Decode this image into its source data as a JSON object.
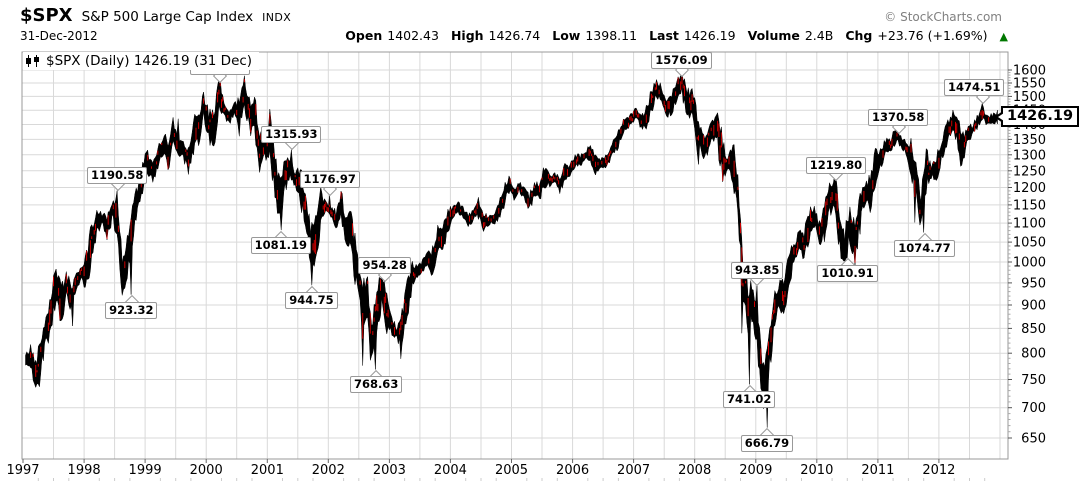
{
  "header": {
    "symbol": "$SPX",
    "name": "S&P 500 Large Cap Index",
    "exchange": "INDX",
    "credit": "© StockCharts.com",
    "date": "31-Dec-2012",
    "quote": {
      "open_label": "Open",
      "open_value": "1402.43",
      "high_label": "High",
      "high_value": "1426.74",
      "low_label": "Low",
      "low_value": "1398.11",
      "last_label": "Last",
      "last_value": "1426.19",
      "volume_label": "Volume",
      "volume_value": "2.4B",
      "chg_label": "Chg",
      "chg_value": "+23.76 (+1.69%)",
      "chg_direction": "up"
    }
  },
  "legend_text": "$SPX (Daily) 1426.19 (31 Dec)",
  "price_box_value": "1426.19",
  "colors": {
    "candle": "#000000",
    "candle_down": "#cc0000",
    "grid": "#d9d9d9",
    "plot_border": "#999999",
    "up_arrow_green": "#007700",
    "credit_gray": "#808080"
  },
  "chart_data": {
    "type": "candlestick",
    "title": "$SPX (Daily) 1426.19 (31 Dec)",
    "x_range": [
      1997,
      2013
    ],
    "x_ticks": [
      "1997",
      "1998",
      "1999",
      "2000",
      "2001",
      "2002",
      "2003",
      "2004",
      "2005",
      "2006",
      "2007",
      "2008",
      "2009",
      "2010",
      "2011",
      "2012"
    ],
    "y_scale": "log",
    "y_ticks": [
      650,
      700,
      750,
      800,
      850,
      900,
      950,
      1000,
      1050,
      1100,
      1150,
      1200,
      1250,
      1300,
      1350,
      1400,
      1450,
      1500,
      1550,
      1600
    ],
    "grid": true,
    "legend_position": "top-left",
    "monthly_close": {
      "start": "1997-01",
      "step": "1 month",
      "values": [
        786,
        791,
        757,
        801,
        848,
        885,
        954,
        899,
        947,
        914,
        955,
        970,
        980,
        1049,
        1102,
        1112,
        1091,
        1134,
        1121,
        957,
        1017,
        1099,
        1164,
        1229,
        1280,
        1238,
        1286,
        1335,
        1302,
        1373,
        1329,
        1320,
        1283,
        1363,
        1389,
        1469,
        1394,
        1366,
        1499,
        1452,
        1421,
        1455,
        1431,
        1518,
        1437,
        1429,
        1315,
        1320,
        1366,
        1240,
        1160,
        1249,
        1256,
        1224,
        1211,
        1134,
        1041,
        1060,
        1139,
        1148,
        1130,
        1107,
        1147,
        1077,
        1067,
        990,
        912,
        916,
        815,
        886,
        936,
        880,
        856,
        841,
        848,
        917,
        964,
        975,
        990,
        1008,
        996,
        1051,
        1058,
        1112,
        1131,
        1145,
        1126,
        1107,
        1121,
        1141,
        1102,
        1104,
        1115,
        1130,
        1174,
        1212,
        1181,
        1204,
        1181,
        1157,
        1192,
        1191,
        1234,
        1220,
        1229,
        1207,
        1249,
        1248,
        1280,
        1281,
        1295,
        1311,
        1270,
        1270,
        1277,
        1304,
        1336,
        1378,
        1401,
        1418,
        1438,
        1407,
        1421,
        1482,
        1531,
        1503,
        1455,
        1474,
        1527,
        1549,
        1481,
        1468,
        1379,
        1331,
        1323,
        1386,
        1400,
        1280,
        1267,
        1283,
        1166,
        969,
        896,
        903,
        826,
        735,
        798,
        873,
        919,
        919,
        987,
        1021,
        1057,
        1036,
        1096,
        1115,
        1074,
        1104,
        1169,
        1187,
        1089,
        1031,
        1102,
        1049,
        1141,
        1183,
        1181,
        1258,
        1286,
        1327,
        1326,
        1364,
        1345,
        1321,
        1292,
        1219,
        1131,
        1253,
        1247,
        1258,
        1312,
        1366,
        1408,
        1398,
        1310,
        1362,
        1379,
        1407,
        1441,
        1412,
        1416,
        1426.19
      ]
    },
    "intramonth_extremes": [
      [
        1997.27,
        737
      ],
      [
        1997.82,
        855
      ],
      [
        1998.54,
        1190.58
      ],
      [
        1998.77,
        923.32
      ],
      [
        1999.54,
        1420
      ],
      [
        2000.22,
        1553.11
      ],
      [
        2000.65,
        1530
      ],
      [
        2001.22,
        1081.19
      ],
      [
        2001.39,
        1315.93
      ],
      [
        2001.72,
        944.75
      ],
      [
        2002.02,
        1176.97
      ],
      [
        2002.56,
        776
      ],
      [
        2002.64,
        965
      ],
      [
        2002.78,
        768.63
      ],
      [
        2002.92,
        954.28
      ],
      [
        2003.19,
        789
      ],
      [
        2007.78,
        1576.09
      ],
      [
        2008.06,
        1270
      ],
      [
        2008.78,
        840
      ],
      [
        2008.89,
        741.02
      ],
      [
        2009.02,
        943.85
      ],
      [
        2009.18,
        666.79
      ],
      [
        2010.31,
        1219.8
      ],
      [
        2010.35,
        1066
      ],
      [
        2010.5,
        1010.91
      ],
      [
        2011.33,
        1370.58
      ],
      [
        2011.61,
        1101.5
      ],
      [
        2011.76,
        1074.77
      ],
      [
        2012.71,
        1474.51
      ]
    ],
    "annotations": [
      {
        "t": 1998.54,
        "value": 1190.58,
        "label": "1190.58",
        "side": "above"
      },
      {
        "t": 1998.77,
        "value": 923.32,
        "label": "923.32",
        "side": "below"
      },
      {
        "t": 2000.22,
        "value": 1553.11,
        "label": "1553.11",
        "side": "above"
      },
      {
        "t": 2001.22,
        "value": 1081.19,
        "label": "1081.19",
        "side": "below"
      },
      {
        "t": 2001.39,
        "value": 1315.93,
        "label": "1315.93",
        "side": "above"
      },
      {
        "t": 2001.72,
        "value": 944.75,
        "label": "944.75",
        "side": "below"
      },
      {
        "t": 2002.02,
        "value": 1176.97,
        "label": "1176.97",
        "side": "above"
      },
      {
        "t": 2002.78,
        "value": 768.63,
        "label": "768.63",
        "side": "below"
      },
      {
        "t": 2002.92,
        "value": 954.28,
        "label": "954.28",
        "side": "above"
      },
      {
        "t": 2007.78,
        "value": 1576.09,
        "label": "1576.09",
        "side": "above"
      },
      {
        "t": 2008.89,
        "value": 741.02,
        "label": "741.02",
        "side": "below"
      },
      {
        "t": 2009.02,
        "value": 943.85,
        "label": "943.85",
        "side": "above"
      },
      {
        "t": 2009.18,
        "value": 666.79,
        "label": "666.79",
        "side": "below"
      },
      {
        "t": 2010.31,
        "value": 1219.8,
        "label": "1219.80",
        "side": "above"
      },
      {
        "t": 2010.5,
        "value": 1010.91,
        "label": "1010.91",
        "side": "below"
      },
      {
        "t": 2011.33,
        "value": 1370.58,
        "label": "1370.58",
        "side": "above"
      },
      {
        "t": 2011.76,
        "value": 1074.77,
        "label": "1074.77",
        "side": "below"
      },
      {
        "t": 2012.71,
        "value": 1474.51,
        "label": "1474.51",
        "side": "above"
      }
    ],
    "last": {
      "t": 2012.958,
      "value": 1426.19
    }
  }
}
